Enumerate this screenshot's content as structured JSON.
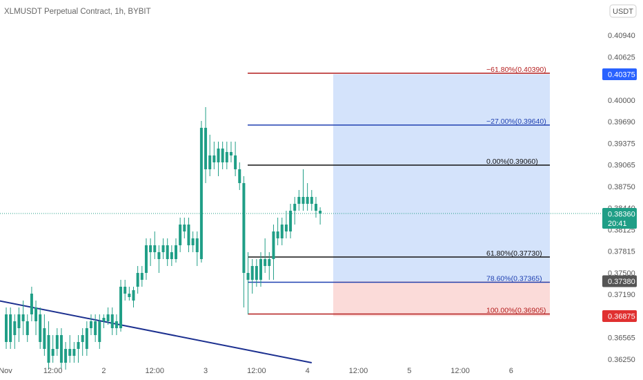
{
  "header": {
    "title": "XLMUSDT Perpetual Contract, 1h, BYBIT",
    "currency_button": "USDT"
  },
  "colors": {
    "candle": "#1f9e86",
    "fib_red": "#b31b1b",
    "fib_blue": "#1e3fb0",
    "fib_black": "#111111",
    "trendline": "#1b2f8f",
    "target_zone": "#cfe0fb",
    "stop_zone": "#fbd9d7",
    "current_price": "#1f9e86",
    "last_badge": "#2962ff",
    "marker_badge": "#555555",
    "stop_badge": "#e03030"
  },
  "chart_data": {
    "type": "candlestick",
    "symbol": "XLMUSDT Perpetual Contract",
    "interval": "1h",
    "exchange": "BYBIT",
    "ylim": [
      0.3615,
      0.4115
    ],
    "y_ticks": [
      "0.40940",
      "0.40625",
      "0.40000",
      "0.39690",
      "0.39375",
      "0.39065",
      "0.38750",
      "0.38440",
      "0.38125",
      "0.37815",
      "0.37500",
      "0.37190",
      "0.36565",
      "0.36250"
    ],
    "x_ticks": [
      {
        "label": "Nov",
        "t": -1
      },
      {
        "label": "12:00",
        "t": 11
      },
      {
        "label": "2",
        "t": 23
      },
      {
        "label": "12:00",
        "t": 35
      },
      {
        "label": "3",
        "t": 47
      },
      {
        "label": "12:00",
        "t": 59
      },
      {
        "label": "4",
        "t": 71
      },
      {
        "label": "12:00",
        "t": 83
      },
      {
        "label": "5",
        "t": 95
      },
      {
        "label": "12:00",
        "t": 107
      },
      {
        "label": "6",
        "t": 119
      }
    ],
    "candles": [
      [
        0.365,
        0.37,
        0.364,
        0.369
      ],
      [
        0.369,
        0.37,
        0.364,
        0.365
      ],
      [
        0.366,
        0.369,
        0.364,
        0.368
      ],
      [
        0.367,
        0.37,
        0.365,
        0.369
      ],
      [
        0.369,
        0.371,
        0.366,
        0.368
      ],
      [
        0.368,
        0.369,
        0.365,
        0.366
      ],
      [
        0.369,
        0.373,
        0.368,
        0.372
      ],
      [
        0.368,
        0.371,
        0.366,
        0.37
      ],
      [
        0.369,
        0.37,
        0.364,
        0.365
      ],
      [
        0.367,
        0.369,
        0.363,
        0.364
      ],
      [
        0.366,
        0.368,
        0.361,
        0.362
      ],
      [
        0.364,
        0.366,
        0.362,
        0.363
      ],
      [
        0.364,
        0.367,
        0.363,
        0.366
      ],
      [
        0.366,
        0.367,
        0.361,
        0.362
      ],
      [
        0.362,
        0.365,
        0.361,
        0.364
      ],
      [
        0.364,
        0.366,
        0.362,
        0.363
      ],
      [
        0.363,
        0.365,
        0.362,
        0.364
      ],
      [
        0.364,
        0.366,
        0.362,
        0.365
      ],
      [
        0.365,
        0.367,
        0.363,
        0.366
      ],
      [
        0.364,
        0.368,
        0.363,
        0.367
      ],
      [
        0.367,
        0.369,
        0.366,
        0.368
      ],
      [
        0.368,
        0.369,
        0.365,
        0.366
      ],
      [
        0.365,
        0.369,
        0.364,
        0.368
      ],
      [
        0.368,
        0.369,
        0.367,
        0.3685
      ],
      [
        0.368,
        0.37,
        0.3675,
        0.369
      ],
      [
        0.369,
        0.37,
        0.366,
        0.367
      ],
      [
        0.368,
        0.369,
        0.366,
        0.367
      ],
      [
        0.367,
        0.374,
        0.3665,
        0.373
      ],
      [
        0.373,
        0.374,
        0.371,
        0.372
      ],
      [
        0.372,
        0.373,
        0.371,
        0.3715
      ],
      [
        0.371,
        0.373,
        0.37,
        0.3725
      ],
      [
        0.373,
        0.376,
        0.372,
        0.375
      ],
      [
        0.374,
        0.376,
        0.373,
        0.375
      ],
      [
        0.375,
        0.38,
        0.374,
        0.379
      ],
      [
        0.378,
        0.38,
        0.376,
        0.379
      ],
      [
        0.379,
        0.381,
        0.377,
        0.378
      ],
      [
        0.377,
        0.379,
        0.375,
        0.378
      ],
      [
        0.378,
        0.38,
        0.377,
        0.379
      ],
      [
        0.379,
        0.38,
        0.376,
        0.377
      ],
      [
        0.378,
        0.379,
        0.376,
        0.377
      ],
      [
        0.377,
        0.38,
        0.3765,
        0.379
      ],
      [
        0.379,
        0.383,
        0.378,
        0.382
      ],
      [
        0.381,
        0.383,
        0.38,
        0.382
      ],
      [
        0.382,
        0.383,
        0.378,
        0.379
      ],
      [
        0.379,
        0.381,
        0.378,
        0.38
      ],
      [
        0.38,
        0.381,
        0.376,
        0.378
      ],
      [
        0.377,
        0.397,
        0.3765,
        0.396
      ],
      [
        0.396,
        0.399,
        0.388,
        0.39
      ],
      [
        0.39,
        0.395,
        0.389,
        0.392
      ],
      [
        0.392,
        0.394,
        0.39,
        0.391
      ],
      [
        0.391,
        0.394,
        0.389,
        0.393
      ],
      [
        0.393,
        0.394,
        0.39,
        0.391
      ],
      [
        0.391,
        0.394,
        0.39,
        0.3925
      ],
      [
        0.3925,
        0.394,
        0.391,
        0.392
      ],
      [
        0.392,
        0.394,
        0.389,
        0.39
      ],
      [
        0.39,
        0.391,
        0.387,
        0.388
      ],
      [
        0.388,
        0.389,
        0.37,
        0.375
      ],
      [
        0.375,
        0.378,
        0.369,
        0.374
      ],
      [
        0.374,
        0.377,
        0.372,
        0.376
      ],
      [
        0.376,
        0.377,
        0.373,
        0.374
      ],
      [
        0.374,
        0.378,
        0.373,
        0.377
      ],
      [
        0.377,
        0.38,
        0.375,
        0.376
      ],
      [
        0.376,
        0.378,
        0.374,
        0.377
      ],
      [
        0.377,
        0.382,
        0.374,
        0.381
      ],
      [
        0.381,
        0.383,
        0.379,
        0.38
      ],
      [
        0.38,
        0.383,
        0.379,
        0.382
      ],
      [
        0.382,
        0.384,
        0.38,
        0.381
      ],
      [
        0.381,
        0.385,
        0.38,
        0.384
      ],
      [
        0.384,
        0.386,
        0.382,
        0.385
      ],
      [
        0.385,
        0.387,
        0.384,
        0.386
      ],
      [
        0.386,
        0.39,
        0.384,
        0.385
      ],
      [
        0.385,
        0.388,
        0.384,
        0.386
      ],
      [
        0.386,
        0.387,
        0.384,
        0.385
      ],
      [
        0.385,
        0.386,
        0.383,
        0.384
      ],
      [
        0.384,
        0.3845,
        0.382,
        0.3836
      ]
    ]
  },
  "fib_levels": [
    {
      "label": "−61.80%(0.40390)",
      "price": 0.4039,
      "color": "#b31b1b"
    },
    {
      "label": "−27.00%(0.39640)",
      "price": 0.3964,
      "color": "#1e3fb0"
    },
    {
      "label": "0.00%(0.39060)",
      "price": 0.3906,
      "color": "#111111"
    },
    {
      "label": "61.80%(0.37730)",
      "price": 0.3773,
      "color": "#111111"
    },
    {
      "label": "78.60%(0.37365)",
      "price": 0.37365,
      "color": "#1e3fb0"
    },
    {
      "label": "100.00%(0.36905)",
      "price": 0.36905,
      "color": "#b31b1b"
    }
  ],
  "price_badges": [
    {
      "value": "0.40375",
      "price": 0.40375,
      "color": "#2962ff"
    },
    {
      "value": "0.38360",
      "sub": "20:41",
      "price": 0.3836,
      "color": "#1f9e86"
    },
    {
      "value": "0.37380",
      "price": 0.3738,
      "color": "#555555"
    },
    {
      "value": "0.36875",
      "price": 0.36875,
      "color": "#e03030"
    }
  ],
  "position": {
    "entry": 0.3738,
    "target": 0.40375,
    "stop": 0.36875
  },
  "current_price": 0.3836,
  "trendline": {
    "t_start": -2,
    "p_start": 0.371,
    "t_end": 72,
    "p_end": 0.362
  }
}
